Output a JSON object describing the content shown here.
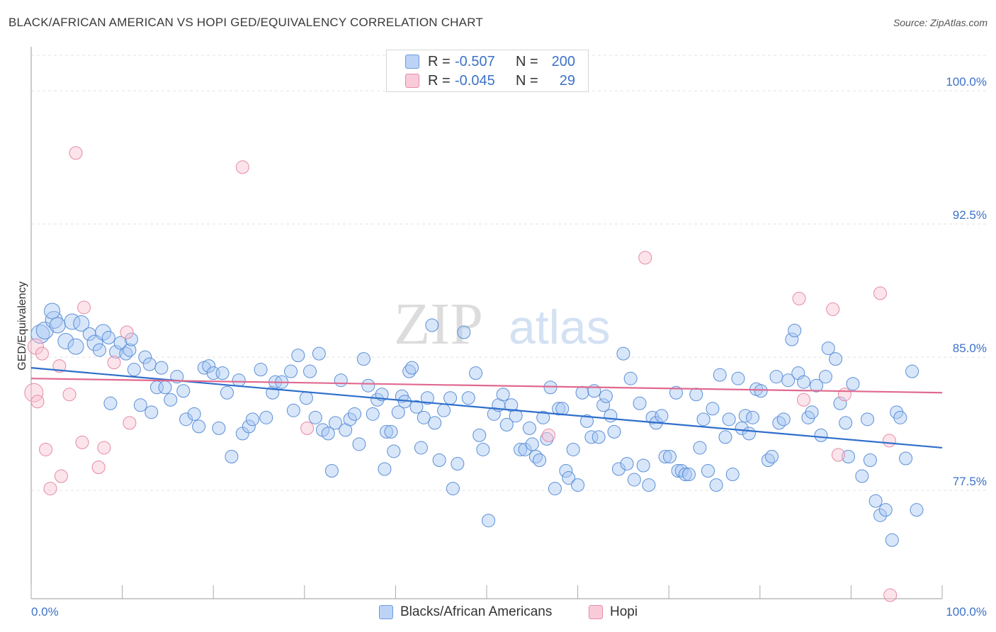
{
  "header": {
    "title": "BLACK/AFRICAN AMERICAN VS HOPI GED/EQUIVALENCY CORRELATION CHART",
    "source": "Source: ZipAtlas.com"
  },
  "watermark": {
    "zip": "ZIP",
    "atlas": "atlas"
  },
  "legend_top": {
    "rows": [
      {
        "r_label": "R =",
        "r_value": "-0.507",
        "n_label": "N =",
        "n_value": "200"
      },
      {
        "r_label": "R =",
        "r_value": "-0.045",
        "n_label": "N =",
        "n_value": "29"
      }
    ]
  },
  "legend_bottom": {
    "items": [
      {
        "label": "Blacks/African Americans"
      },
      {
        "label": "Hopi"
      }
    ]
  },
  "colors": {
    "blue_fill": "#a9c8f5",
    "blue_stroke": "#5b8fd6",
    "blue_line": "#2f6fcb",
    "pink_fill": "#f8c3d3",
    "pink_stroke": "#e58aa6",
    "pink_line": "#e0698f",
    "axis_text": "#3d72c9",
    "grid": "#e3e3e3"
  },
  "chart_data": {
    "type": "scatter",
    "title": "BLACK/AFRICAN AMERICAN VS HOPI GED/EQUIVALENCY CORRELATION CHART",
    "xlabel": "",
    "ylabel": "GED/Equivalency",
    "xlim": [
      0,
      100
    ],
    "ylim": [
      71.4,
      102.0
    ],
    "x_tick_labels": [
      "0.0%",
      "100.0%"
    ],
    "y_ticks": [
      77.5,
      85.0,
      92.5,
      100.0
    ],
    "y_tick_labels": [
      "77.5%",
      "85.0%",
      "92.5%",
      "100.0%"
    ],
    "grid": true,
    "legend_position": "top-center",
    "series": [
      {
        "name": "Blacks/African Americans",
        "color": "#a9c8f5",
        "trend": {
          "x": [
            0,
            100
          ],
          "y": [
            84.4,
            79.9
          ]
        },
        "points": [
          [
            1.0,
            86.3,
            4
          ],
          [
            1.5,
            86.5,
            3
          ],
          [
            2.5,
            87.1,
            3
          ],
          [
            2.3,
            87.6,
            2
          ],
          [
            2.9,
            86.8,
            2
          ],
          [
            3.8,
            85.9,
            2
          ],
          [
            4.5,
            87.0,
            2
          ],
          [
            5.5,
            86.9,
            2
          ],
          [
            4.9,
            85.6,
            2
          ],
          [
            6.4,
            86.3,
            1
          ],
          [
            7.0,
            85.8,
            2
          ],
          [
            7.5,
            85.4,
            1
          ],
          [
            7.9,
            86.4,
            2
          ],
          [
            8.5,
            86.1,
            1
          ],
          [
            9.3,
            85.3,
            1
          ],
          [
            9.8,
            85.8,
            1
          ],
          [
            10.4,
            85.2,
            1
          ],
          [
            10.8,
            85.4,
            1
          ],
          [
            11.0,
            86.0,
            1
          ],
          [
            11.3,
            84.3,
            1
          ],
          [
            12.5,
            85.0,
            1
          ],
          [
            13.0,
            84.6,
            1
          ],
          [
            14.3,
            84.4,
            1
          ],
          [
            8.7,
            82.4,
            1
          ],
          [
            12.0,
            82.3,
            1
          ],
          [
            13.2,
            81.9,
            1
          ],
          [
            13.8,
            83.3,
            1
          ],
          [
            14.7,
            83.3,
            1
          ],
          [
            15.3,
            82.6,
            1
          ],
          [
            16.0,
            83.9,
            1
          ],
          [
            16.7,
            83.1,
            1
          ],
          [
            17.0,
            81.5,
            1
          ],
          [
            17.9,
            81.8,
            1
          ],
          [
            18.4,
            81.1,
            1
          ],
          [
            19.0,
            84.4,
            1
          ],
          [
            19.5,
            84.5,
            1
          ],
          [
            20.0,
            84.1,
            1
          ],
          [
            20.6,
            81.0,
            1
          ],
          [
            21.0,
            84.1,
            1
          ],
          [
            21.5,
            83.0,
            1
          ],
          [
            22.0,
            79.4,
            1
          ],
          [
            22.8,
            83.7,
            1
          ],
          [
            23.2,
            80.7,
            1
          ],
          [
            23.9,
            81.1,
            1
          ],
          [
            24.3,
            81.5,
            1
          ],
          [
            25.2,
            84.3,
            1
          ],
          [
            25.8,
            81.6,
            1
          ],
          [
            26.5,
            83.0,
            1
          ],
          [
            26.8,
            83.6,
            1
          ],
          [
            27.5,
            83.6,
            1
          ],
          [
            28.5,
            84.2,
            1
          ],
          [
            28.8,
            82.0,
            1
          ],
          [
            29.3,
            85.1,
            1
          ],
          [
            30.2,
            82.7,
            1
          ],
          [
            30.6,
            84.2,
            1
          ],
          [
            31.2,
            81.6,
            1
          ],
          [
            31.6,
            85.2,
            1
          ],
          [
            32.0,
            80.9,
            1
          ],
          [
            32.6,
            80.7,
            1
          ],
          [
            33.0,
            78.6,
            1
          ],
          [
            33.4,
            81.3,
            1
          ],
          [
            34.0,
            83.7,
            1
          ],
          [
            34.5,
            80.9,
            1
          ],
          [
            35.0,
            81.5,
            1
          ],
          [
            35.5,
            81.8,
            1
          ],
          [
            36.0,
            80.1,
            1
          ],
          [
            36.5,
            84.9,
            1
          ],
          [
            37.0,
            83.4,
            1
          ],
          [
            37.5,
            81.8,
            1
          ],
          [
            38.0,
            82.6,
            1
          ],
          [
            38.5,
            82.9,
            1
          ],
          [
            38.8,
            78.7,
            1
          ],
          [
            39.0,
            80.8,
            1
          ],
          [
            39.5,
            80.8,
            1
          ],
          [
            39.8,
            79.7,
            1
          ],
          [
            40.3,
            81.9,
            1
          ],
          [
            40.7,
            82.8,
            1
          ],
          [
            41.0,
            82.5,
            1
          ],
          [
            41.5,
            84.2,
            1
          ],
          [
            41.8,
            84.4,
            1
          ],
          [
            42.3,
            82.2,
            1
          ],
          [
            42.8,
            79.9,
            1
          ],
          [
            43.1,
            81.6,
            1
          ],
          [
            43.5,
            82.7,
            1
          ],
          [
            44.0,
            86.8,
            1
          ],
          [
            44.3,
            81.3,
            1
          ],
          [
            44.8,
            79.2,
            1
          ],
          [
            45.3,
            82.0,
            1
          ],
          [
            46.0,
            82.7,
            1
          ],
          [
            46.3,
            77.6,
            1
          ],
          [
            46.8,
            79.0,
            1
          ],
          [
            47.5,
            86.4,
            1
          ],
          [
            48.0,
            82.7,
            1
          ],
          [
            48.8,
            84.1,
            1
          ],
          [
            49.2,
            80.6,
            1
          ],
          [
            49.6,
            79.8,
            1
          ],
          [
            50.2,
            75.8,
            1
          ],
          [
            50.8,
            81.8,
            1
          ],
          [
            51.3,
            82.3,
            1
          ],
          [
            51.8,
            82.9,
            1
          ],
          [
            52.2,
            81.2,
            1
          ],
          [
            52.7,
            82.3,
            1
          ],
          [
            53.2,
            81.7,
            1
          ],
          [
            53.7,
            79.8,
            1
          ],
          [
            54.2,
            79.8,
            1
          ],
          [
            54.7,
            81.0,
            1
          ],
          [
            55.0,
            80.1,
            1
          ],
          [
            55.4,
            79.4,
            1
          ],
          [
            55.8,
            79.2,
            1
          ],
          [
            56.2,
            81.6,
            1
          ],
          [
            56.6,
            80.4,
            1
          ],
          [
            57.0,
            83.3,
            1
          ],
          [
            57.5,
            77.6,
            1
          ],
          [
            57.9,
            82.1,
            1
          ],
          [
            58.3,
            82.1,
            1
          ],
          [
            58.7,
            78.6,
            1
          ],
          [
            59.0,
            78.2,
            1
          ],
          [
            59.5,
            79.8,
            1
          ],
          [
            60.0,
            77.8,
            1
          ],
          [
            60.5,
            83.0,
            1
          ],
          [
            61.0,
            81.4,
            1
          ],
          [
            61.5,
            80.5,
            1
          ],
          [
            61.8,
            83.1,
            1
          ],
          [
            62.3,
            80.5,
            1
          ],
          [
            62.8,
            82.3,
            1
          ],
          [
            63.1,
            82.8,
            1
          ],
          [
            63.6,
            81.7,
            1
          ],
          [
            64.0,
            80.8,
            1
          ],
          [
            64.5,
            78.7,
            1
          ],
          [
            65.0,
            85.2,
            1
          ],
          [
            65.4,
            79.0,
            1
          ],
          [
            65.8,
            83.8,
            1
          ],
          [
            66.2,
            78.1,
            1
          ],
          [
            66.8,
            82.4,
            1
          ],
          [
            67.2,
            78.9,
            1
          ],
          [
            67.8,
            77.8,
            1
          ],
          [
            68.2,
            81.6,
            1
          ],
          [
            68.6,
            81.3,
            1
          ],
          [
            69.2,
            81.7,
            1
          ],
          [
            69.6,
            79.4,
            1
          ],
          [
            70.1,
            79.4,
            1
          ],
          [
            70.8,
            83.0,
            1
          ],
          [
            71.0,
            78.6,
            1
          ],
          [
            71.4,
            78.6,
            1
          ],
          [
            71.8,
            78.4,
            1
          ],
          [
            72.2,
            78.4,
            1
          ],
          [
            73.0,
            82.9,
            1
          ],
          [
            73.4,
            79.9,
            1
          ],
          [
            73.8,
            81.5,
            1
          ],
          [
            74.3,
            78.6,
            1
          ],
          [
            74.8,
            82.1,
            1
          ],
          [
            75.2,
            77.8,
            1
          ],
          [
            75.6,
            84.0,
            1
          ],
          [
            76.2,
            80.5,
            1
          ],
          [
            76.6,
            81.5,
            1
          ],
          [
            77.0,
            78.4,
            1
          ],
          [
            77.6,
            83.8,
            1
          ],
          [
            78.0,
            81.0,
            1
          ],
          [
            78.4,
            81.7,
            1
          ],
          [
            78.8,
            80.7,
            1
          ],
          [
            79.2,
            81.6,
            1
          ],
          [
            79.6,
            83.2,
            1
          ],
          [
            80.1,
            83.1,
            1
          ],
          [
            80.9,
            79.2,
            1
          ],
          [
            81.3,
            79.4,
            1
          ],
          [
            81.8,
            83.9,
            1
          ],
          [
            82.1,
            81.3,
            1
          ],
          [
            82.6,
            81.5,
            1
          ],
          [
            83.1,
            83.7,
            1
          ],
          [
            83.5,
            86.0,
            1
          ],
          [
            83.8,
            86.5,
            1
          ],
          [
            84.2,
            84.1,
            1
          ],
          [
            84.8,
            83.6,
            1
          ],
          [
            85.3,
            81.6,
            1
          ],
          [
            85.7,
            81.9,
            1
          ],
          [
            86.2,
            83.4,
            1
          ],
          [
            86.7,
            80.6,
            1
          ],
          [
            87.2,
            83.9,
            1
          ],
          [
            87.5,
            85.5,
            1
          ],
          [
            88.3,
            84.9,
            1
          ],
          [
            88.8,
            82.4,
            1
          ],
          [
            89.4,
            81.3,
            1
          ],
          [
            89.7,
            79.4,
            1
          ],
          [
            90.2,
            83.5,
            1
          ],
          [
            91.2,
            78.3,
            1
          ],
          [
            91.8,
            81.5,
            1
          ],
          [
            92.1,
            79.2,
            1
          ],
          [
            92.7,
            76.9,
            1
          ],
          [
            93.2,
            76.1,
            1
          ],
          [
            93.8,
            76.4,
            1
          ],
          [
            94.5,
            74.7,
            1
          ],
          [
            95.0,
            81.9,
            1
          ],
          [
            95.4,
            81.6,
            1
          ],
          [
            96.0,
            79.3,
            1
          ],
          [
            96.7,
            84.2,
            1
          ],
          [
            97.2,
            76.4,
            1
          ]
        ]
      },
      {
        "name": "Hopi",
        "color": "#f8c3d3",
        "trend": {
          "x": [
            0,
            100
          ],
          "y": [
            83.8,
            83.0
          ]
        },
        "points": [
          [
            0.3,
            83.0,
            4
          ],
          [
            0.5,
            85.6,
            2
          ],
          [
            0.7,
            82.5,
            1
          ],
          [
            1.2,
            85.2,
            1
          ],
          [
            1.6,
            79.8,
            1
          ],
          [
            2.1,
            77.6,
            1
          ],
          [
            3.1,
            84.5,
            1
          ],
          [
            3.3,
            78.3,
            1
          ],
          [
            4.2,
            82.9,
            1
          ],
          [
            4.9,
            96.5,
            1
          ],
          [
            5.6,
            80.2,
            1
          ],
          [
            5.8,
            87.8,
            1
          ],
          [
            7.4,
            78.8,
            1
          ],
          [
            8.0,
            79.9,
            1
          ],
          [
            9.1,
            84.7,
            1
          ],
          [
            10.5,
            86.4,
            1
          ],
          [
            10.8,
            81.3,
            1
          ],
          [
            23.2,
            95.7,
            1
          ],
          [
            30.3,
            81.0,
            1
          ],
          [
            56.8,
            80.6,
            1
          ],
          [
            67.4,
            90.6,
            1
          ],
          [
            84.3,
            88.3,
            1
          ],
          [
            84.8,
            82.6,
            1
          ],
          [
            88.0,
            87.7,
            1
          ],
          [
            88.6,
            79.5,
            1
          ],
          [
            89.3,
            82.9,
            1
          ],
          [
            93.2,
            88.6,
            1
          ],
          [
            94.2,
            80.3,
            1
          ],
          [
            94.3,
            71.6,
            1
          ]
        ]
      }
    ]
  }
}
